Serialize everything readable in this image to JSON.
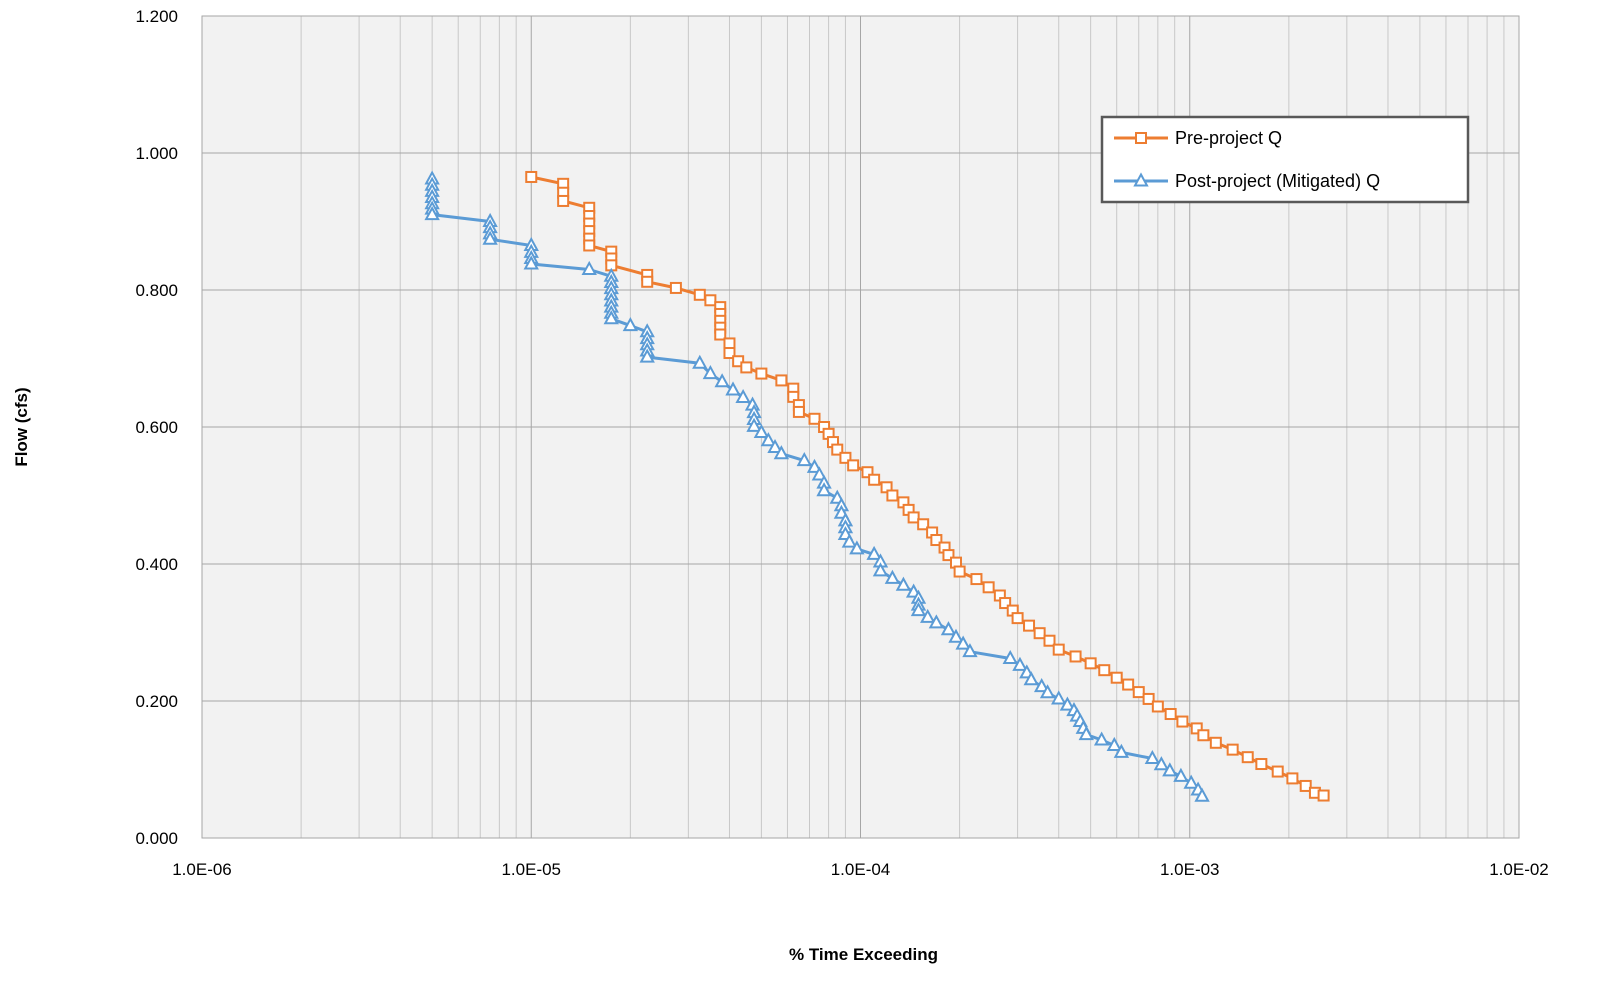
{
  "chart_data": {
    "type": "line",
    "title": "",
    "xlabel": "% Time Exceeding",
    "ylabel": "Flow (cfs)",
    "xscale": "log",
    "xlim": [
      1e-06,
      0.01
    ],
    "ylim": [
      0,
      1.2
    ],
    "x_tick_labels": [
      "1.0E-06",
      "1.0E-05",
      "1.0E-04",
      "1.0E-03",
      "1.0E-02"
    ],
    "y_tick_labels": [
      "0.000",
      "0.200",
      "0.400",
      "0.600",
      "0.800",
      "1.000",
      "1.200"
    ],
    "grid": true,
    "plot_background": "#f2f2f2",
    "legend": {
      "position": "top-right"
    },
    "series": [
      {
        "name": "Pre-project Q",
        "color": "#ed7d31",
        "marker": "square",
        "points": [
          [
            1e-05,
            0.965
          ],
          [
            1.25e-05,
            0.955
          ],
          [
            1.25e-05,
            0.942
          ],
          [
            1.25e-05,
            0.93
          ],
          [
            1.5e-05,
            0.92
          ],
          [
            1.5e-05,
            0.908
          ],
          [
            1.5e-05,
            0.897
          ],
          [
            1.5e-05,
            0.886
          ],
          [
            1.5e-05,
            0.875
          ],
          [
            1.5e-05,
            0.865
          ],
          [
            1.75e-05,
            0.856
          ],
          [
            1.75e-05,
            0.846
          ],
          [
            1.75e-05,
            0.836
          ],
          [
            2.25e-05,
            0.822
          ],
          [
            2.25e-05,
            0.812
          ],
          [
            2.75e-05,
            0.803
          ],
          [
            3.25e-05,
            0.793
          ],
          [
            3.5e-05,
            0.785
          ],
          [
            3.75e-05,
            0.775
          ],
          [
            3.75e-05,
            0.765
          ],
          [
            3.75e-05,
            0.755
          ],
          [
            3.75e-05,
            0.745
          ],
          [
            3.75e-05,
            0.735
          ],
          [
            4e-05,
            0.722
          ],
          [
            4e-05,
            0.708
          ],
          [
            4.25e-05,
            0.696
          ],
          [
            4.5e-05,
            0.687
          ],
          [
            5e-05,
            0.678
          ],
          [
            5.75e-05,
            0.668
          ],
          [
            6.25e-05,
            0.656
          ],
          [
            6.25e-05,
            0.644
          ],
          [
            6.5e-05,
            0.632
          ],
          [
            6.5e-05,
            0.622
          ],
          [
            7.25e-05,
            0.612
          ],
          [
            7.75e-05,
            0.6
          ],
          [
            8e-05,
            0.59
          ],
          [
            8.25e-05,
            0.578
          ],
          [
            8.5e-05,
            0.567
          ],
          [
            9e-05,
            0.555
          ],
          [
            9.5e-05,
            0.544
          ],
          [
            0.000105,
            0.534
          ],
          [
            0.00011,
            0.523
          ],
          [
            0.00012,
            0.512
          ],
          [
            0.000125,
            0.5
          ],
          [
            0.000135,
            0.49
          ],
          [
            0.00014,
            0.479
          ],
          [
            0.000145,
            0.468
          ],
          [
            0.000155,
            0.458
          ],
          [
            0.000165,
            0.446
          ],
          [
            0.00017,
            0.435
          ],
          [
            0.00018,
            0.424
          ],
          [
            0.000185,
            0.413
          ],
          [
            0.000195,
            0.402
          ],
          [
            0.0002,
            0.389
          ],
          [
            0.000225,
            0.378
          ],
          [
            0.000245,
            0.366
          ],
          [
            0.000265,
            0.354
          ],
          [
            0.000275,
            0.343
          ],
          [
            0.00029,
            0.332
          ],
          [
            0.0003,
            0.321
          ],
          [
            0.000325,
            0.31
          ],
          [
            0.00035,
            0.299
          ],
          [
            0.000375,
            0.288
          ],
          [
            0.0004,
            0.275
          ],
          [
            0.00045,
            0.265
          ],
          [
            0.0005,
            0.255
          ],
          [
            0.00055,
            0.245
          ],
          [
            0.0006,
            0.234
          ],
          [
            0.00065,
            0.224
          ],
          [
            0.0007,
            0.213
          ],
          [
            0.00075,
            0.203
          ],
          [
            0.0008,
            0.192
          ],
          [
            0.000875,
            0.181
          ],
          [
            0.00095,
            0.17
          ],
          [
            0.00105,
            0.16
          ],
          [
            0.0011,
            0.15
          ],
          [
            0.0012,
            0.139
          ],
          [
            0.00135,
            0.129
          ],
          [
            0.0015,
            0.118
          ],
          [
            0.00165,
            0.108
          ],
          [
            0.00185,
            0.097
          ],
          [
            0.00205,
            0.087
          ],
          [
            0.00225,
            0.076
          ],
          [
            0.0024,
            0.066
          ],
          [
            0.00255,
            0.062
          ]
        ]
      },
      {
        "name": "Post-project (Mitigated) Q",
        "color": "#5b9bd5",
        "marker": "triangle",
        "points": [
          [
            5e-06,
            0.962
          ],
          [
            5e-06,
            0.953
          ],
          [
            5e-06,
            0.944
          ],
          [
            5e-06,
            0.935
          ],
          [
            5e-06,
            0.926
          ],
          [
            5e-06,
            0.918
          ],
          [
            5e-06,
            0.91
          ],
          [
            7.5e-06,
            0.9
          ],
          [
            7.5e-06,
            0.891
          ],
          [
            7.5e-06,
            0.882
          ],
          [
            7.5e-06,
            0.874
          ],
          [
            1e-05,
            0.865
          ],
          [
            1e-05,
            0.855
          ],
          [
            1e-05,
            0.846
          ],
          [
            1e-05,
            0.838
          ],
          [
            1.5e-05,
            0.83
          ],
          [
            1.75e-05,
            0.82
          ],
          [
            1.75e-05,
            0.811
          ],
          [
            1.75e-05,
            0.802
          ],
          [
            1.75e-05,
            0.793
          ],
          [
            1.75e-05,
            0.784
          ],
          [
            1.75e-05,
            0.775
          ],
          [
            1.75e-05,
            0.766
          ],
          [
            1.75e-05,
            0.758
          ],
          [
            2e-05,
            0.748
          ],
          [
            2.25e-05,
            0.739
          ],
          [
            2.25e-05,
            0.729
          ],
          [
            2.25e-05,
            0.72
          ],
          [
            2.25e-05,
            0.711
          ],
          [
            2.25e-05,
            0.702
          ],
          [
            3.25e-05,
            0.693
          ],
          [
            3.5e-05,
            0.678
          ],
          [
            3.8e-05,
            0.666
          ],
          [
            4.1e-05,
            0.654
          ],
          [
            4.4e-05,
            0.643
          ],
          [
            4.7e-05,
            0.632
          ],
          [
            4.75e-05,
            0.621
          ],
          [
            4.75e-05,
            0.611
          ],
          [
            4.75e-05,
            0.601
          ],
          [
            5e-05,
            0.592
          ],
          [
            5.25e-05,
            0.58
          ],
          [
            5.5e-05,
            0.57
          ],
          [
            5.75e-05,
            0.561
          ],
          [
            6.75e-05,
            0.551
          ],
          [
            7.25e-05,
            0.541
          ],
          [
            7.5e-05,
            0.53
          ],
          [
            7.75e-05,
            0.518
          ],
          [
            7.75e-05,
            0.507
          ],
          [
            8.5e-05,
            0.496
          ],
          [
            8.75e-05,
            0.485
          ],
          [
            8.75e-05,
            0.474
          ],
          [
            9e-05,
            0.463
          ],
          [
            9e-05,
            0.453
          ],
          [
            9e-05,
            0.443
          ],
          [
            9.25e-05,
            0.432
          ],
          [
            9.75e-05,
            0.422
          ],
          [
            0.00011,
            0.414
          ],
          [
            0.000115,
            0.403
          ],
          [
            0.000115,
            0.39
          ],
          [
            0.000125,
            0.379
          ],
          [
            0.000135,
            0.369
          ],
          [
            0.000145,
            0.359
          ],
          [
            0.00015,
            0.35
          ],
          [
            0.00015,
            0.34
          ],
          [
            0.00015,
            0.332
          ],
          [
            0.00016,
            0.322
          ],
          [
            0.00017,
            0.314
          ],
          [
            0.000185,
            0.304
          ],
          [
            0.000195,
            0.293
          ],
          [
            0.000205,
            0.283
          ],
          [
            0.000215,
            0.272
          ],
          [
            0.000285,
            0.262
          ],
          [
            0.000305,
            0.252
          ],
          [
            0.00032,
            0.241
          ],
          [
            0.00033,
            0.231
          ],
          [
            0.000355,
            0.221
          ],
          [
            0.00037,
            0.212
          ],
          [
            0.0004,
            0.203
          ],
          [
            0.000425,
            0.194
          ],
          [
            0.000445,
            0.186
          ],
          [
            0.000455,
            0.178
          ],
          [
            0.000465,
            0.17
          ],
          [
            0.000475,
            0.16
          ],
          [
            0.000485,
            0.151
          ],
          [
            0.00054,
            0.143
          ],
          [
            0.00059,
            0.135
          ],
          [
            0.00062,
            0.125
          ],
          [
            0.00077,
            0.116
          ],
          [
            0.00082,
            0.107
          ],
          [
            0.00087,
            0.098
          ],
          [
            0.00094,
            0.09
          ],
          [
            0.00101,
            0.08
          ],
          [
            0.00106,
            0.07
          ],
          [
            0.00109,
            0.061
          ]
        ]
      }
    ]
  }
}
